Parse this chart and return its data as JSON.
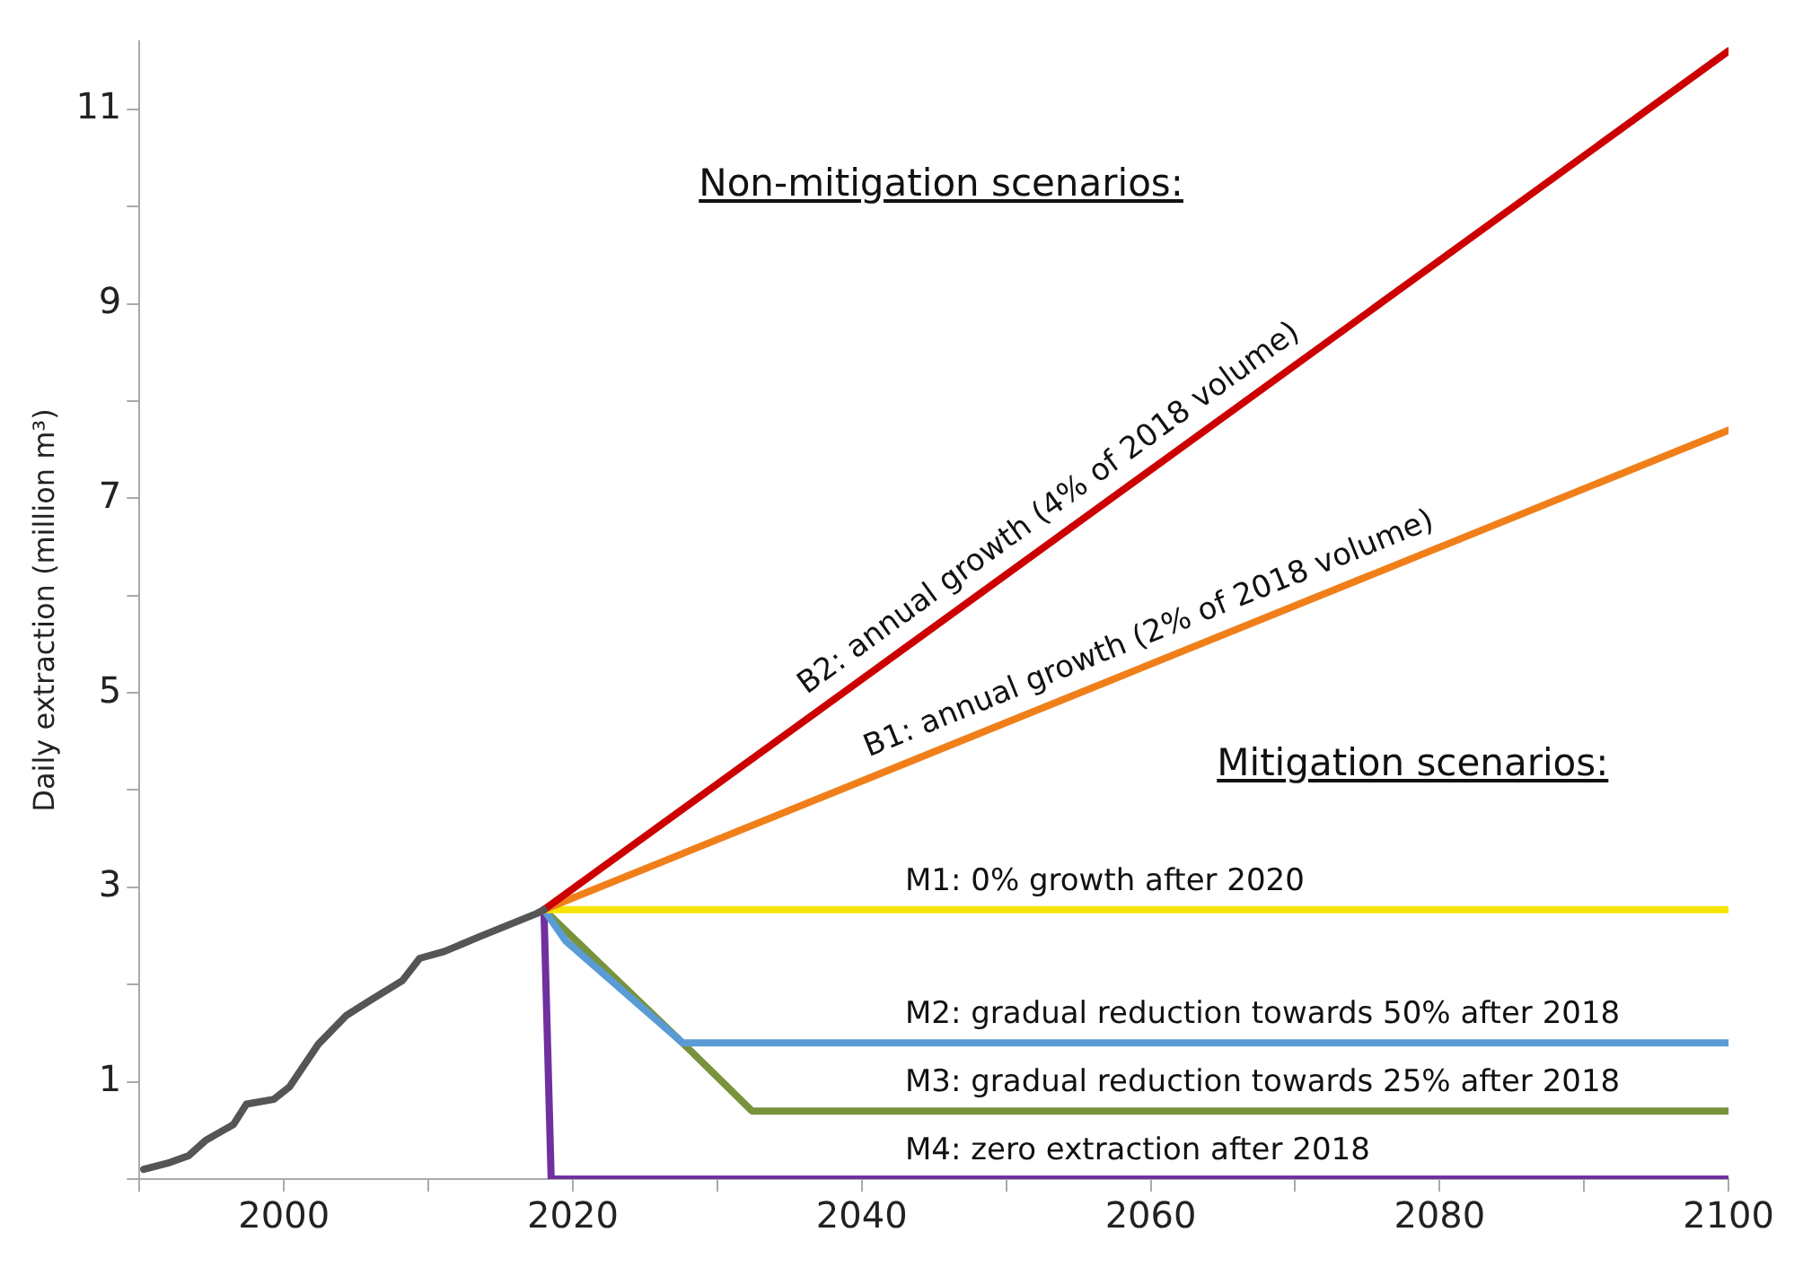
{
  "chart_data": {
    "type": "line",
    "ylabel": "Daily extraction (million m³)",
    "xlim": [
      1990,
      2100
    ],
    "ylim": [
      0,
      11.7
    ],
    "xticks": [
      {
        "value": 1990,
        "label": null
      },
      2000,
      {
        "value": 2010,
        "label": null
      },
      2020,
      {
        "value": 2030,
        "label": null
      },
      2040,
      {
        "value": 2050,
        "label": null
      },
      2060,
      {
        "value": 2070,
        "label": null
      },
      2080,
      {
        "value": 2090,
        "label": null
      },
      2100
    ],
    "yticks": [
      {
        "value": 0,
        "label": null
      },
      1,
      {
        "value": 2,
        "label": null
      },
      3,
      {
        "value": 4,
        "label": null
      },
      5,
      {
        "value": 6,
        "label": null
      },
      7,
      {
        "value": 8,
        "label": null
      },
      9,
      {
        "value": 10,
        "label": null
      },
      11
    ],
    "grid": false,
    "marker": "none",
    "line_style": "solid",
    "annotations": [
      "Non-mitigation scenarios:",
      "Mitigation scenarios:"
    ],
    "series": [
      {
        "color": "#555555",
        "x": [
          1990.3,
          1992.1,
          1993.4,
          1994.6,
          1996.5,
          1997.4,
          1999.3,
          2000.4,
          2002.4,
          2004.3,
          2006.1,
          2008.2,
          2009.4,
          2011.1,
          2013.5,
          2017.5,
          2018
        ],
        "values": [
          0.1,
          0.17,
          0.24,
          0.4,
          0.56,
          0.77,
          0.82,
          0.95,
          1.39,
          1.68,
          1.85,
          2.04,
          2.27,
          2.34,
          2.49,
          2.73,
          2.77
        ]
      },
      {
        "name": "B2: annual growth (4% of 2018 volume)",
        "color": "#cc0000",
        "x": [
          2018,
          2100
        ],
        "values": [
          2.77,
          11.6
        ]
      },
      {
        "name": "B1: annual growth (2% of 2018 volume)",
        "color": "#f07f1a",
        "x": [
          2018,
          2100
        ],
        "values": [
          2.77,
          7.7
        ]
      },
      {
        "name": "M1: 0% growth after 2020",
        "color": "#f5e400",
        "x": [
          2018,
          2100
        ],
        "values": [
          2.77,
          2.77
        ]
      },
      {
        "name": "M2: gradual reduction towards 50% after 2018",
        "color": "#5b9bd5",
        "x": [
          2018,
          2019.5,
          2027.6,
          2100
        ],
        "values": [
          2.77,
          2.45,
          1.4,
          1.4
        ]
      },
      {
        "name": "M3: gradual reduction towards 25% after 2018",
        "color": "#77933c",
        "x": [
          2018,
          2027.6,
          2032.4,
          2100
        ],
        "values": [
          2.77,
          1.4,
          0.7,
          0.7
        ]
      },
      {
        "name": "M4: zero extraction after 2018",
        "color": "#7030a0",
        "x": [
          2018,
          2018.5,
          2100
        ],
        "values": [
          2.77,
          0,
          0
        ]
      }
    ]
  }
}
